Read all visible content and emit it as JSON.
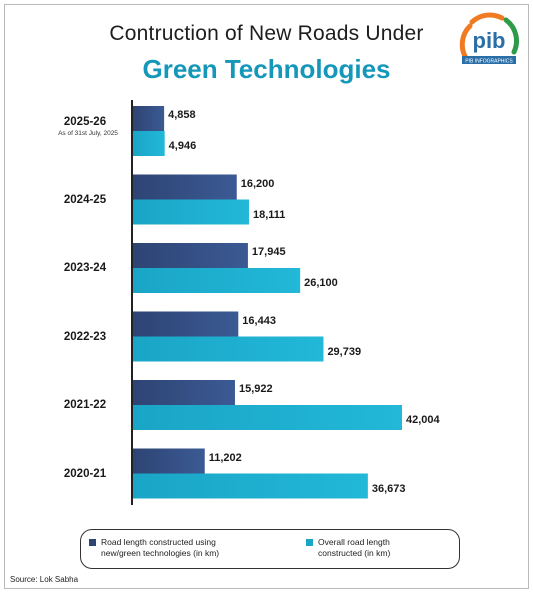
{
  "title": {
    "line1": "Contruction of New Roads Under",
    "line2": "Green Technologies"
  },
  "logo": {
    "text": "pib",
    "subtext": "PIB INFOGRAPHICS",
    "colors": {
      "saffron": "#f07b22",
      "blue": "#2a6ea8",
      "green": "#2e9b48"
    }
  },
  "colors": {
    "series_green_tech": "#2e4473",
    "series_overall": "#1aa5c6",
    "title_accent": "#1597b9"
  },
  "chart_data": {
    "type": "bar",
    "orientation": "horizontal",
    "categories": [
      "2025-26",
      "2024-25",
      "2023-24",
      "2022-23",
      "2021-22",
      "2020-21"
    ],
    "category_notes": [
      "As of 31st July, 2025",
      "",
      "",
      "",
      "",
      ""
    ],
    "series": [
      {
        "name": "Road length constructed using new/green technologies (in km)",
        "values": [
          4858,
          16200,
          17945,
          16443,
          15922,
          11202
        ],
        "labels": [
          "4,858",
          "16,200",
          "17,945",
          "16,443",
          "15,922",
          "11,202"
        ]
      },
      {
        "name": "Overall road length constructed (in km)",
        "values": [
          4946,
          18111,
          26100,
          29739,
          42004,
          36673
        ],
        "labels": [
          "4,946",
          "18,111",
          "26,100",
          "29,739",
          "42,004",
          "36,673"
        ]
      }
    ],
    "xlim": [
      0,
      42004
    ],
    "grid": false,
    "legend_position": "bottom"
  },
  "legend": {
    "item1": "Road length constructed using new/green technologies (in km)",
    "item1_line1": "Road length constructed using",
    "item1_line2": "new/green technologies (in km)",
    "item2": "Overall road length constructed (in km)",
    "item2_line1": "Overall road length",
    "item2_line2": "constructed (in km)"
  },
  "source": "Source: Lok Sabha"
}
